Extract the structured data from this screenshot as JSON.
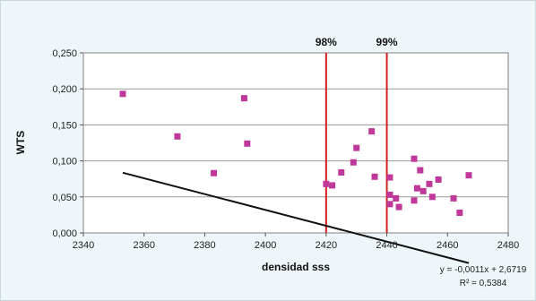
{
  "chart_data": {
    "type": "scatter",
    "xlabel": "densidad sss",
    "ylabel": "WTS",
    "xlim": [
      2340,
      2480
    ],
    "ylim": [
      0,
      0.25
    ],
    "x_ticks": [
      2340,
      2360,
      2380,
      2400,
      2420,
      2440,
      2460,
      2480
    ],
    "y_ticks": [
      0,
      0.05,
      0.1,
      0.15,
      0.2,
      0.25
    ],
    "x_tick_labels": [
      "2340",
      "2360",
      "2380",
      "2400",
      "2420",
      "2440",
      "2460",
      "2480"
    ],
    "y_tick_labels": [
      "0,000",
      "0,050",
      "0,100",
      "0,150",
      "0,200",
      "0,250"
    ],
    "points": [
      {
        "x": 2353,
        "y": 0.193
      },
      {
        "x": 2371,
        "y": 0.134
      },
      {
        "x": 2383,
        "y": 0.083
      },
      {
        "x": 2393,
        "y": 0.187
      },
      {
        "x": 2394,
        "y": 0.124
      },
      {
        "x": 2420,
        "y": 0.068
      },
      {
        "x": 2422,
        "y": 0.066
      },
      {
        "x": 2425,
        "y": 0.084
      },
      {
        "x": 2429,
        "y": 0.098
      },
      {
        "x": 2430,
        "y": 0.118
      },
      {
        "x": 2435,
        "y": 0.141
      },
      {
        "x": 2436,
        "y": 0.078
      },
      {
        "x": 2441,
        "y": 0.077
      },
      {
        "x": 2441,
        "y": 0.053
      },
      {
        "x": 2441,
        "y": 0.04
      },
      {
        "x": 2443,
        "y": 0.048
      },
      {
        "x": 2444,
        "y": 0.036
      },
      {
        "x": 2449,
        "y": 0.103
      },
      {
        "x": 2449,
        "y": 0.045
      },
      {
        "x": 2450,
        "y": 0.062
      },
      {
        "x": 2451,
        "y": 0.087
      },
      {
        "x": 2452,
        "y": 0.058
      },
      {
        "x": 2454,
        "y": 0.068
      },
      {
        "x": 2455,
        "y": 0.05
      },
      {
        "x": 2457,
        "y": 0.074
      },
      {
        "x": 2462,
        "y": 0.048
      },
      {
        "x": 2464,
        "y": 0.028
      },
      {
        "x": 2467,
        "y": 0.08
      }
    ],
    "trendline": {
      "x_start": 2353,
      "x_end": 2467,
      "slope": -0.0011,
      "intercept": 2.6719
    },
    "reference_lines": [
      {
        "x": 2420,
        "label": "98%"
      },
      {
        "x": 2440,
        "label": "99%"
      }
    ],
    "trend_equation": "y = -0,0011x + 2,6719",
    "r_squared_label": "R² = 0,5384",
    "grid": "horizontal",
    "colors": {
      "points": "#c0399a",
      "trendline": "#111111",
      "reference_lines": "#d42020",
      "plot_background": "#ffffff",
      "gridline": "#9a9a9a"
    }
  }
}
